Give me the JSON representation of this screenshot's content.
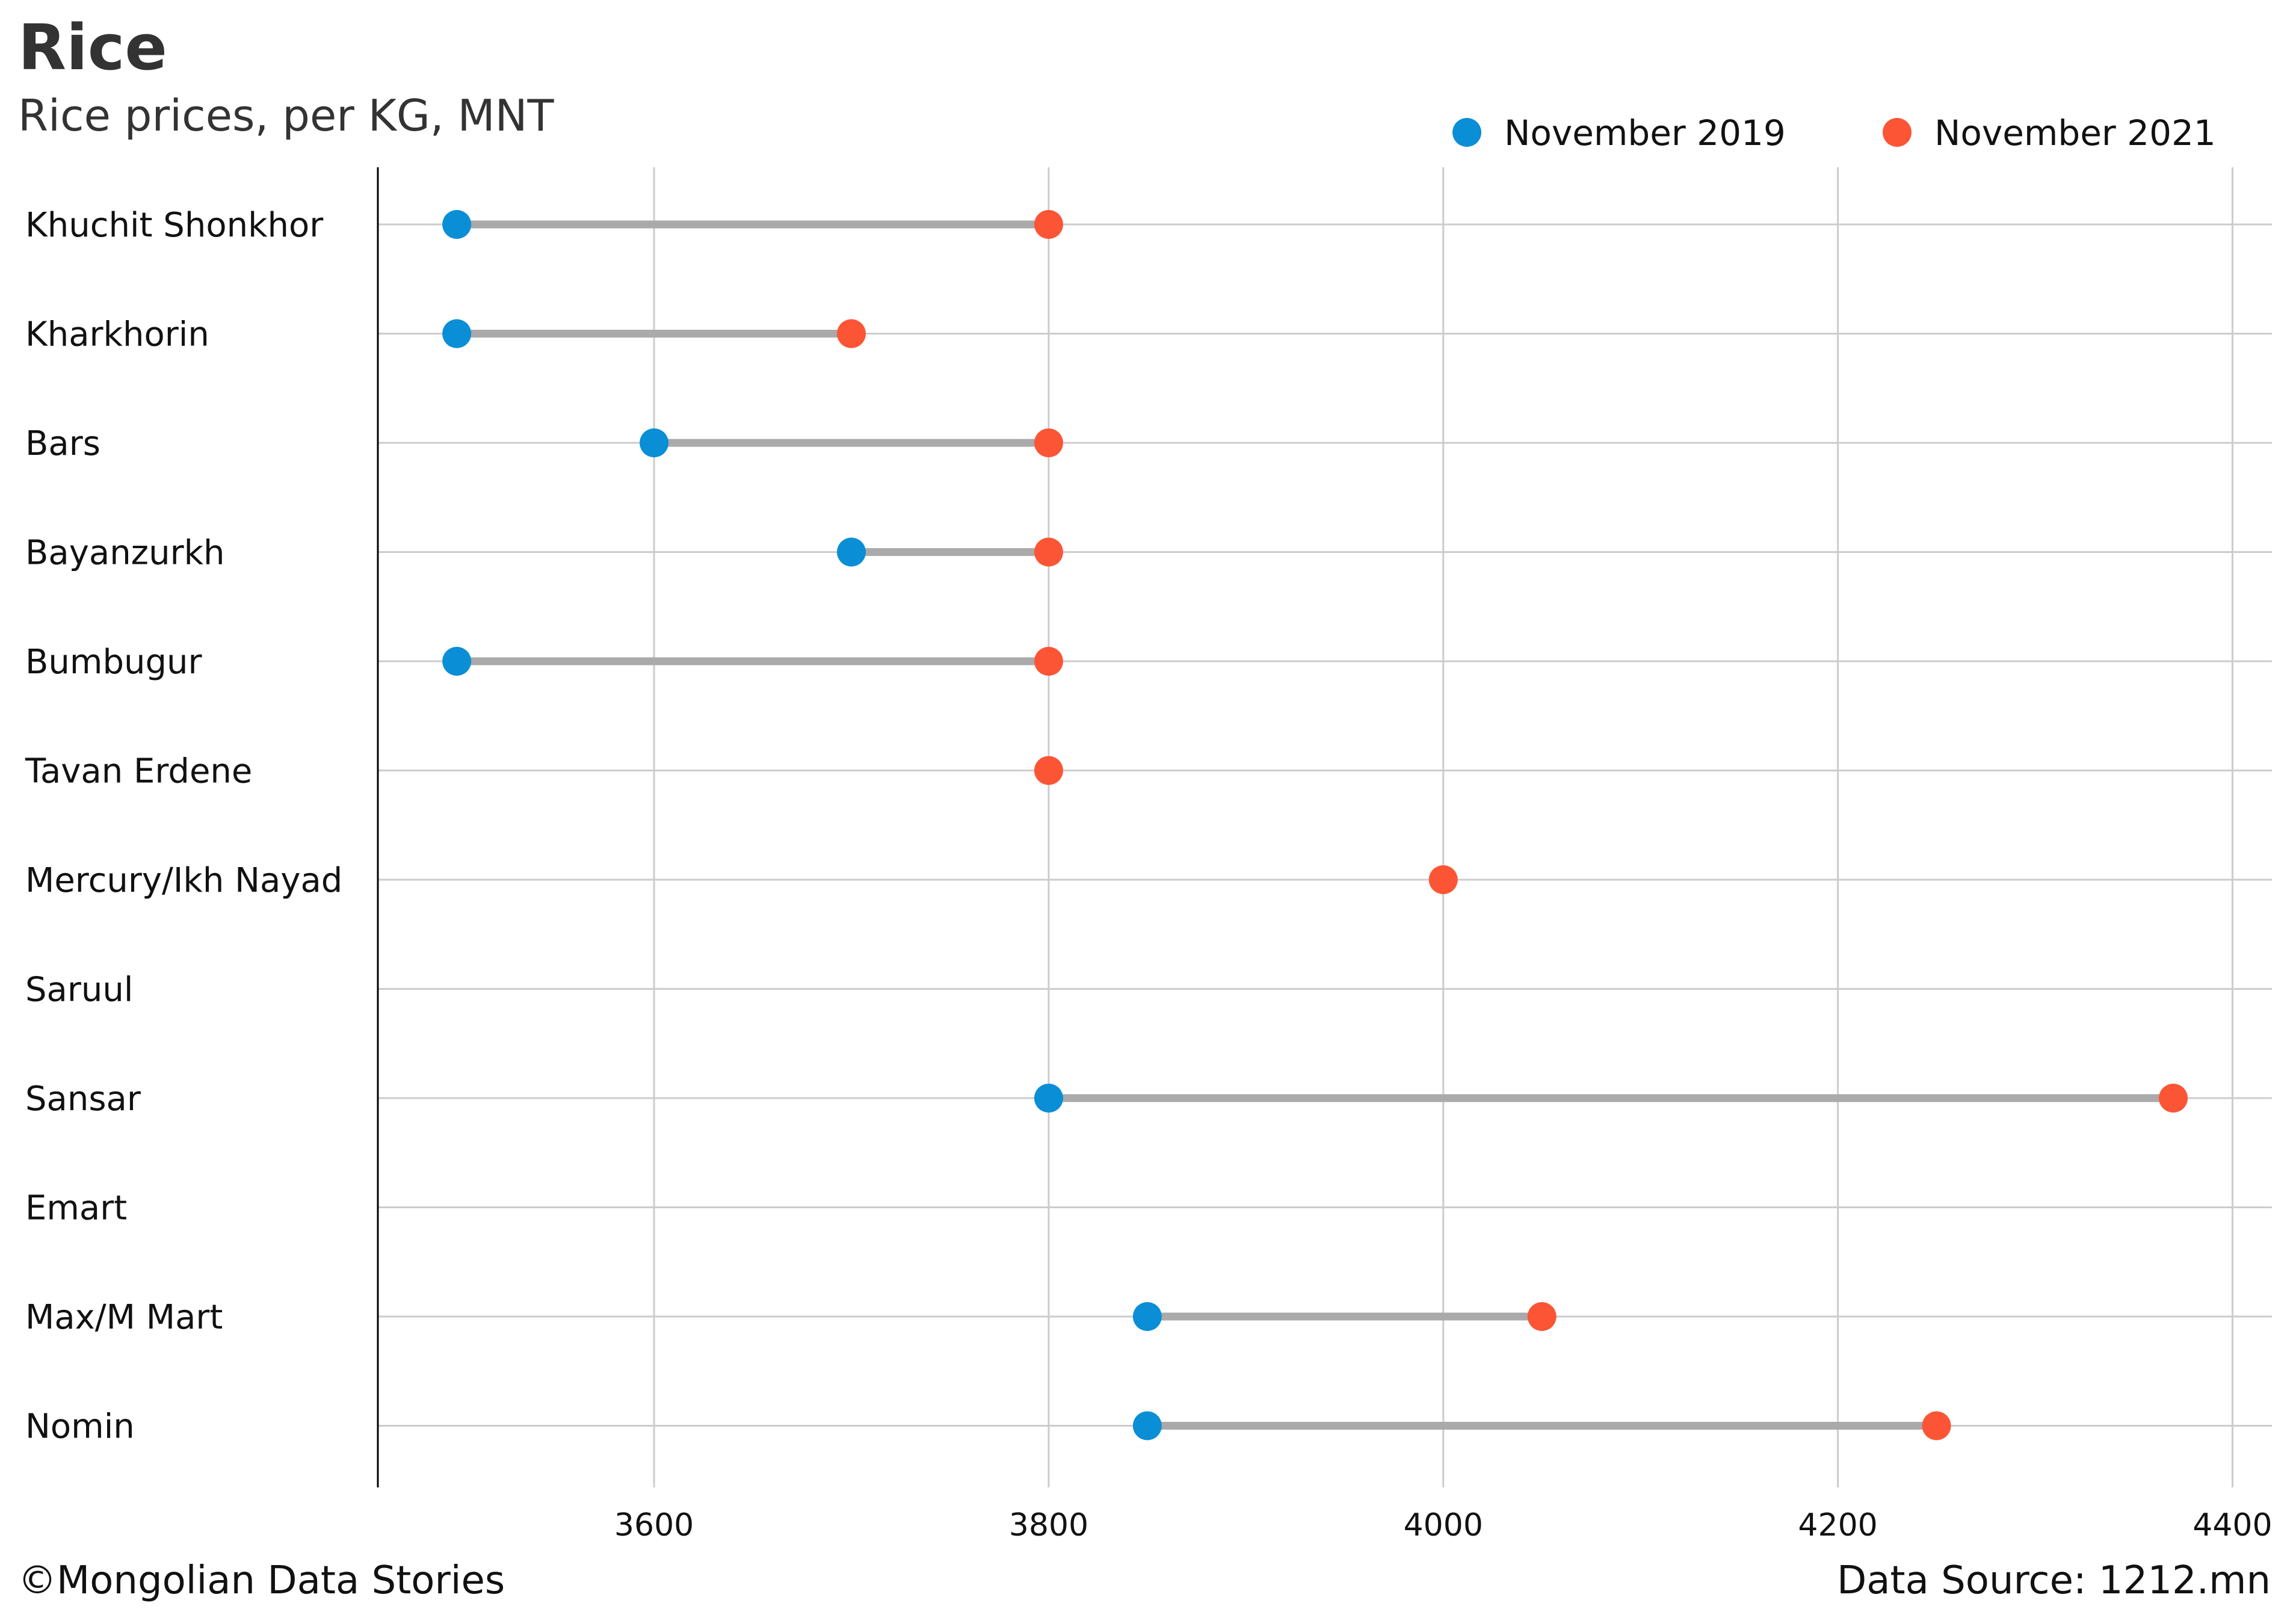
{
  "title": "Rice",
  "subtitle": "Rice prices, per KG, MNT",
  "footer": {
    "credit": "©Mongolian Data Stories",
    "source": "Data Source: 1212.mn"
  },
  "colors": {
    "series_2019": "#0a8ed6",
    "series_2021": "#fc5535",
    "connector": "#aaaaaa",
    "grid": "#cccccc",
    "axis": "#000000"
  },
  "chart_data": {
    "type": "scatter",
    "subtype": "dumbbell",
    "title": "Rice",
    "subtitle": "Rice prices, per KG, MNT",
    "xlabel": "",
    "ylabel": "",
    "xlim": [
      3460,
      4420
    ],
    "xticks": [
      3600,
      3800,
      4000,
      4200,
      4400
    ],
    "grid": true,
    "legend_position": "top-right",
    "categories": [
      "Khuchit Shonkhor",
      "Kharkhorin",
      "Bars",
      "Bayanzurkh",
      "Bumbugur",
      "Tavan Erdene",
      "Mercury/Ikh Nayad",
      "Saruul",
      "Sansar",
      "Emart",
      "Max/M Mart",
      "Nomin"
    ],
    "series": [
      {
        "name": "November 2019",
        "color": "#0a8ed6",
        "values": [
          3500,
          3500,
          3600,
          3700,
          3500,
          null,
          null,
          null,
          3800,
          null,
          3850,
          3850
        ]
      },
      {
        "name": "November 2021",
        "color": "#fc5535",
        "values": [
          3800,
          3700,
          3800,
          3800,
          3800,
          3800,
          4000,
          null,
          4370,
          null,
          4050,
          4250
        ]
      }
    ]
  }
}
